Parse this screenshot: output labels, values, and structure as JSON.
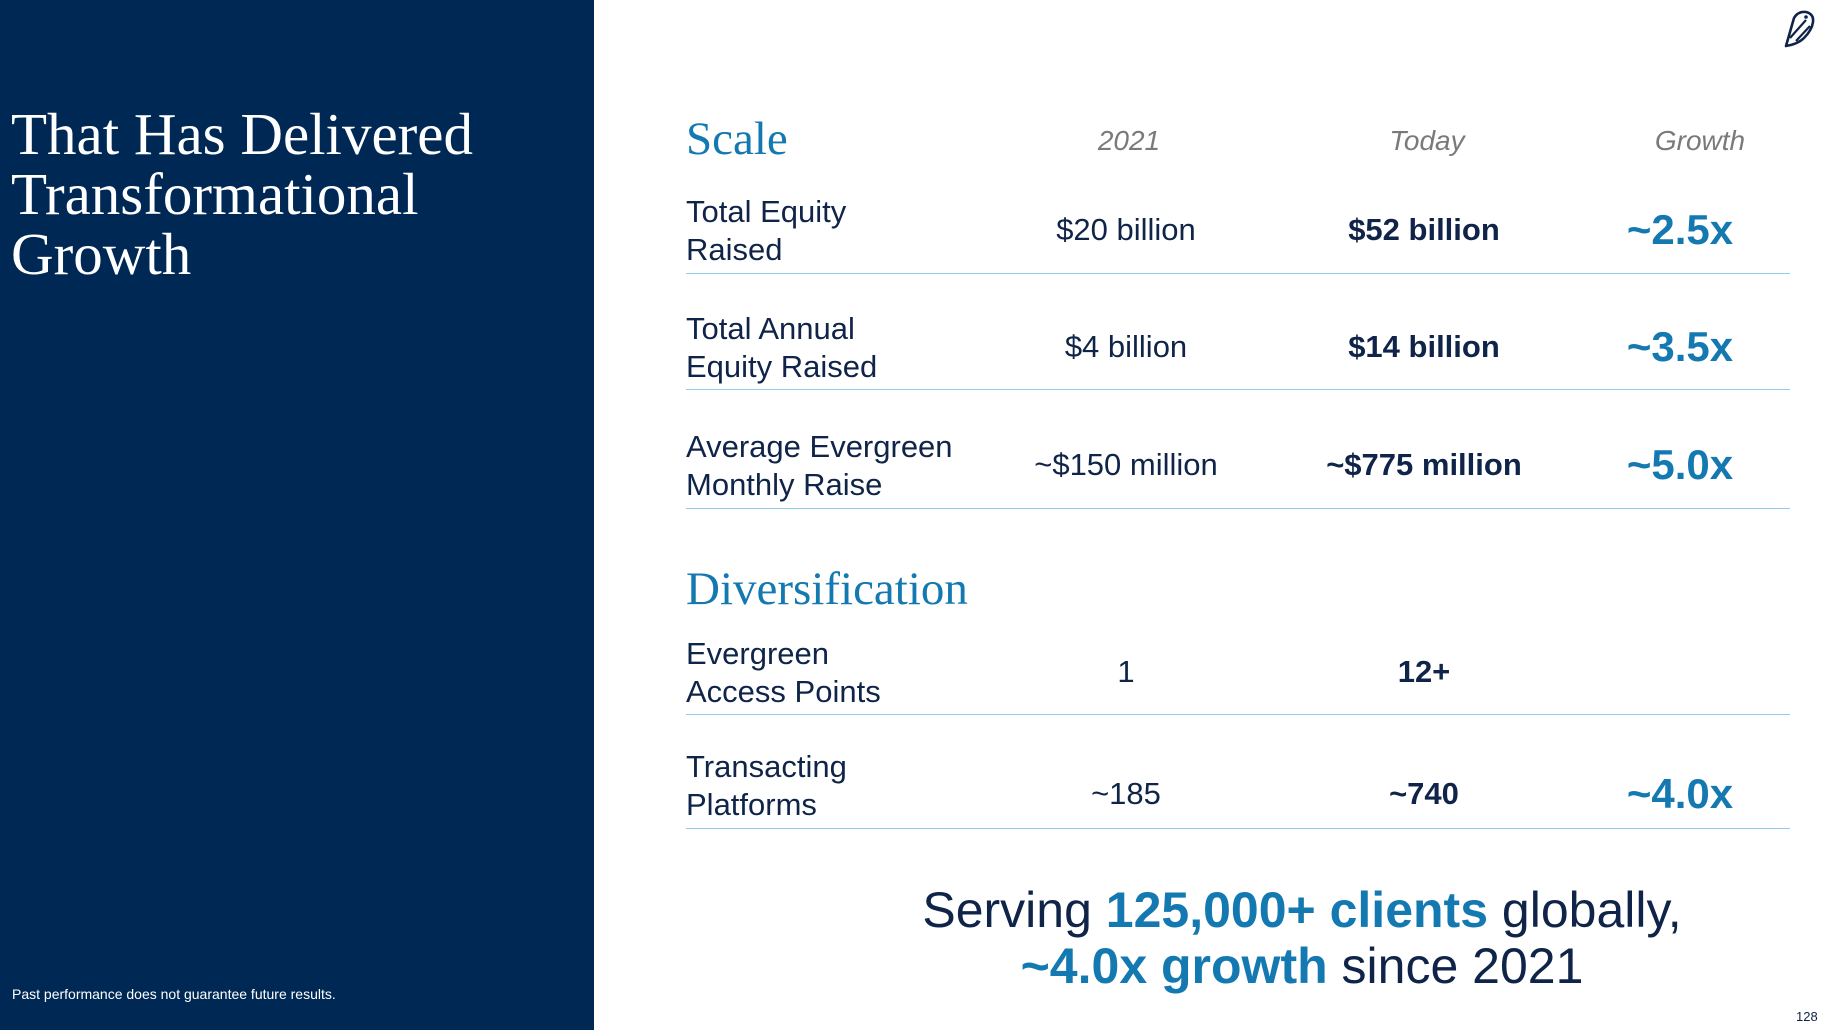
{
  "panel": {
    "title": "That Has Delivered Transformational Growth",
    "disclaimer": "Past performance does not guarantee future results."
  },
  "logo_icon": "bird-logo-icon",
  "scale": {
    "title": "Scale",
    "headers": {
      "year": "2021",
      "today": "Today",
      "growth": "Growth"
    },
    "rows": [
      {
        "metric_line1": "Total Equity",
        "metric_line2": "Raised",
        "y2021": "$20 billion",
        "today": "$52 billion",
        "growth": "~2.5x"
      },
      {
        "metric_line1": "Total Annual",
        "metric_line2": "Equity Raised",
        "y2021": "$4 billion",
        "today": "$14 billion",
        "growth": "~3.5x"
      },
      {
        "metric_line1": "Average Evergreen",
        "metric_line2": "Monthly Raise",
        "y2021": "~$150 million",
        "today": "~$775 million",
        "growth": "~5.0x"
      }
    ]
  },
  "diversification": {
    "title": "Diversification",
    "rows": [
      {
        "metric_line1": "Evergreen",
        "metric_line2": "Access Points",
        "y2021": "1",
        "today": "12+",
        "growth": ""
      },
      {
        "metric_line1": "Transacting",
        "metric_line2": "Platforms",
        "y2021": "~185",
        "today": "~740",
        "growth": "~4.0x"
      }
    ]
  },
  "summary": {
    "line1_pre": "Serving ",
    "line1_hl": "125,000+ clients",
    "line1_post": " globally,",
    "line2_hl": "~4.0x growth",
    "line2_post": " since 2021"
  },
  "page_number": "128",
  "colors": {
    "navy": "#002855",
    "accent": "#1479b0",
    "rule": "#8fcde9"
  }
}
